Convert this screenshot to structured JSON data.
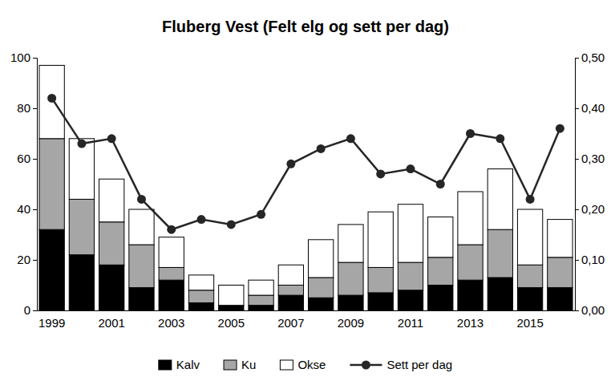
{
  "chart_data": {
    "type": "bar",
    "title": "Fluberg Vest (Felt elg og sett per dag)",
    "stacked": true,
    "legend": "bottom",
    "grid": false,
    "categories": [
      "1999",
      null,
      "2001",
      null,
      "2003",
      null,
      "2005",
      null,
      "2007",
      null,
      "2009",
      null,
      "2011",
      null,
      "2013",
      null,
      "2015",
      null
    ],
    "series": [
      {
        "name": "Kalv",
        "type": "bar",
        "color": "#000000",
        "values": [
          32,
          22,
          18,
          9,
          12,
          3,
          2,
          2,
          6,
          5,
          6,
          7,
          8,
          10,
          12,
          13,
          9,
          9
        ]
      },
      {
        "name": "Ku",
        "type": "bar",
        "color": "#a6a6a6",
        "values": [
          36,
          22,
          17,
          17,
          5,
          5,
          0,
          4,
          4,
          8,
          13,
          10,
          11,
          11,
          14,
          19,
          9,
          12
        ]
      },
      {
        "name": "Okse",
        "type": "bar",
        "color": "#ffffff",
        "values": [
          29,
          24,
          17,
          14,
          12,
          6,
          8,
          6,
          8,
          15,
          15,
          22,
          23,
          16,
          21,
          24,
          22,
          15
        ]
      },
      {
        "name": "Sett per dag",
        "type": "line",
        "axis": "y2",
        "color": "#262626",
        "marker": "circle",
        "line_style": "solid",
        "values": [
          0.42,
          0.33,
          0.34,
          0.22,
          0.16,
          0.18,
          0.17,
          0.19,
          0.29,
          0.32,
          0.34,
          0.27,
          0.28,
          0.25,
          0.35,
          0.34,
          0.22,
          0.36
        ]
      }
    ],
    "ylim": [
      0,
      100
    ],
    "yticks": [
      0,
      20,
      40,
      60,
      80,
      100
    ],
    "y2lim": [
      0,
      0.5
    ],
    "y2ticks": [
      {
        "value": 0,
        "label": "0,00"
      },
      {
        "value": 0.1,
        "label": "0,10"
      },
      {
        "value": 0.2,
        "label": "0,20"
      },
      {
        "value": 0.3,
        "label": "0,30"
      },
      {
        "value": 0.4,
        "label": "0,40"
      },
      {
        "value": 0.5,
        "label": "0,50"
      }
    ]
  }
}
